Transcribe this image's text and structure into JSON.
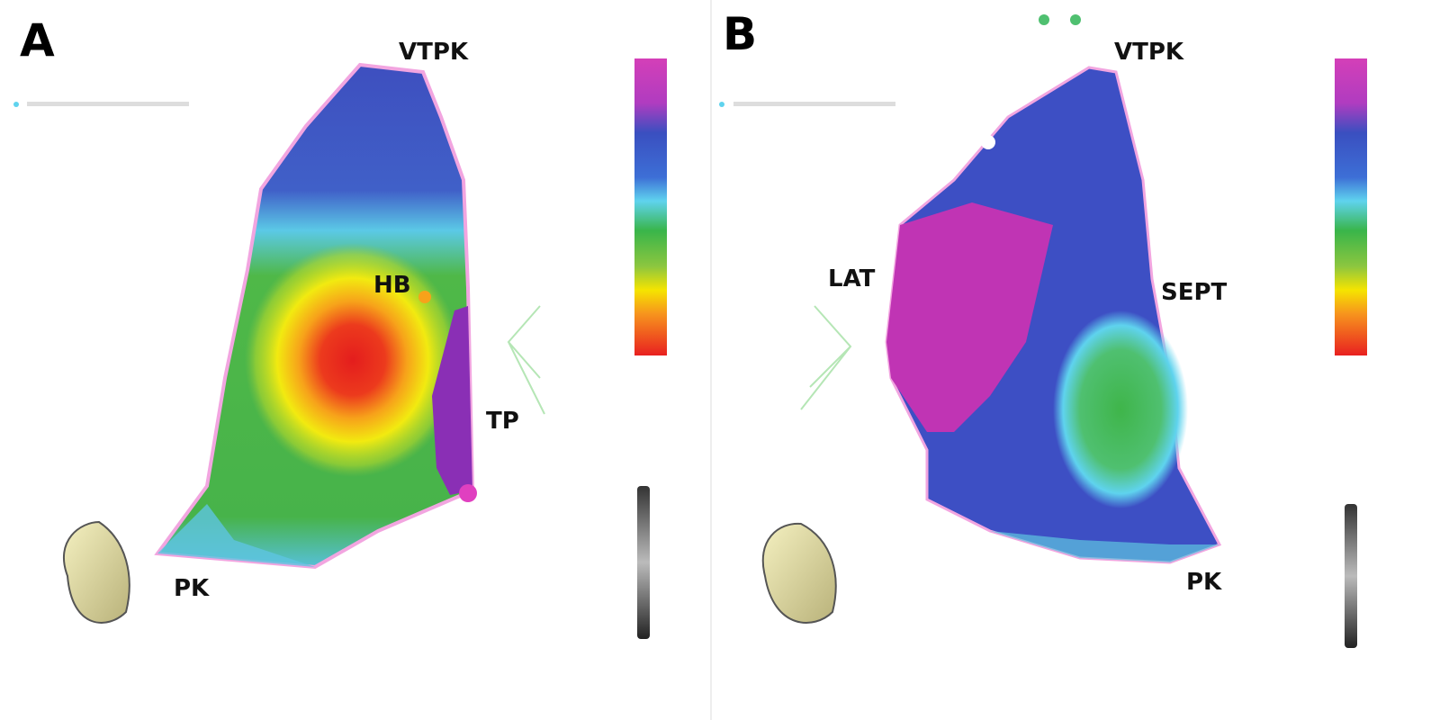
{
  "panels": [
    {
      "label": "A",
      "annotations": [
        "VTPK",
        "HB",
        "TP",
        "PK"
      ]
    },
    {
      "label": "B",
      "annotations": [
        "VTPK",
        "LAT",
        "SEPT",
        "PK"
      ]
    }
  ]
}
